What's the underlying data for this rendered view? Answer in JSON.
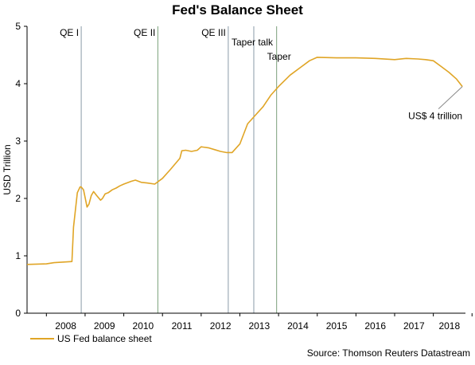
{
  "chart_data": {
    "type": "line",
    "title": "Fed's Balance Sheet",
    "xlabel": "",
    "ylabel": "USD Trillion",
    "ylim": [
      0,
      5
    ],
    "yticks": [
      "0",
      "1",
      "2",
      "3",
      "4",
      "5"
    ],
    "xticks": [
      "2008",
      "2009",
      "2010",
      "2011",
      "2012",
      "2013",
      "2014",
      "2015",
      "2016",
      "2017",
      "2018"
    ],
    "xlim": [
      2007.5,
      2018.83
    ],
    "grid": false,
    "legend_position": "bottom-left",
    "series": [
      {
        "name": "US Fed balance sheet",
        "color": "#E0A526",
        "x": [
          2007.5,
          2008.0,
          2008.2,
          2008.66,
          2008.7,
          2008.75,
          2008.8,
          2008.87,
          2008.9,
          2008.96,
          2009.05,
          2009.1,
          2009.16,
          2009.22,
          2009.3,
          2009.4,
          2009.45,
          2009.52,
          2009.6,
          2009.7,
          2009.8,
          2009.9,
          2010.0,
          2010.2,
          2010.3,
          2010.45,
          2010.6,
          2010.8,
          2011.0,
          2011.2,
          2011.45,
          2011.5,
          2011.6,
          2011.75,
          2011.9,
          2012.0,
          2012.2,
          2012.35,
          2012.5,
          2012.65,
          2012.8,
          2013.0,
          2013.2,
          2013.4,
          2013.6,
          2013.8,
          2014.0,
          2014.3,
          2014.6,
          2014.8,
          2015.0,
          2015.5,
          2016.0,
          2016.5,
          2017.0,
          2017.3,
          2017.6,
          2017.8,
          2018.0,
          2018.2,
          2018.4,
          2018.6,
          2018.75
        ],
        "values": [
          0.85,
          0.86,
          0.88,
          0.9,
          1.5,
          1.8,
          2.1,
          2.2,
          2.2,
          2.15,
          1.85,
          1.9,
          2.05,
          2.12,
          2.05,
          1.97,
          2.0,
          2.08,
          2.1,
          2.15,
          2.18,
          2.22,
          2.25,
          2.3,
          2.32,
          2.28,
          2.27,
          2.25,
          2.35,
          2.5,
          2.7,
          2.83,
          2.84,
          2.82,
          2.84,
          2.9,
          2.88,
          2.85,
          2.82,
          2.8,
          2.8,
          2.95,
          3.3,
          3.45,
          3.6,
          3.8,
          3.95,
          4.15,
          4.3,
          4.4,
          4.46,
          4.45,
          4.45,
          4.44,
          4.42,
          4.44,
          4.43,
          4.42,
          4.4,
          4.3,
          4.2,
          4.08,
          3.95
        ]
      }
    ],
    "events": [
      {
        "label": "QE I",
        "x": 2008.9,
        "color": "#8a9aa8"
      },
      {
        "label": "QE II",
        "x": 2010.88,
        "color": "#7aa07a"
      },
      {
        "label": "QE III",
        "x": 2012.7,
        "color": "#8a9aa8"
      },
      {
        "label": "Taper talk",
        "x": 2013.36,
        "color": "#8a9aa8"
      },
      {
        "label": "Taper",
        "x": 2013.95,
        "color": "#7aa07a"
      }
    ],
    "annotations": [
      {
        "text": "US$ 4 trillion"
      }
    ],
    "legend": [
      "US Fed balance sheet"
    ],
    "source": "Source: Thomson Reuters Datastream"
  }
}
